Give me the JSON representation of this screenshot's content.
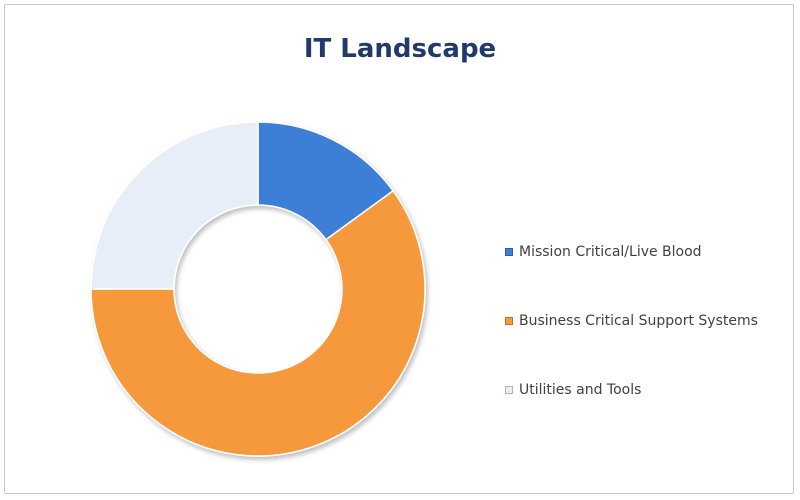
{
  "chart_data": {
    "type": "pie",
    "title": "IT Landscape",
    "categories": [
      "Mission Critical/Live Blood",
      "Business Critical Support Systems",
      "Utilities and Tools"
    ],
    "values": [
      15,
      60,
      25
    ],
    "colors": [
      "#3e7fd6",
      "#f6993c",
      "#e8eef7"
    ],
    "legend_position": "right",
    "hole": "donut"
  }
}
